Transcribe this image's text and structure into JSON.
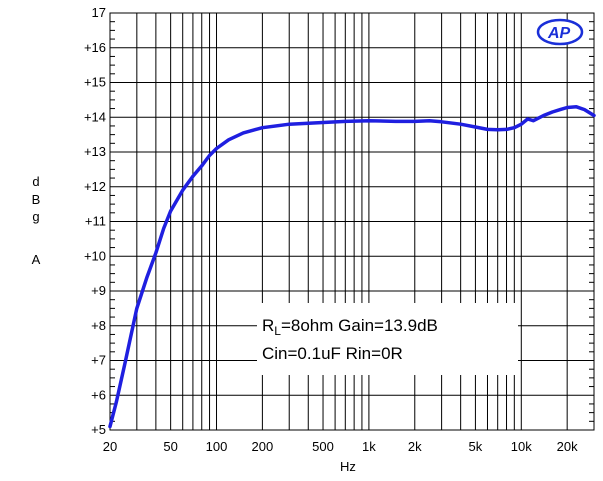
{
  "chart_data": {
    "type": "line",
    "title": "",
    "logo": "AP",
    "xlabel": "Hz",
    "ylabel_lines": [
      "d",
      "B",
      "g",
      "",
      "A"
    ],
    "x_scale": "log",
    "xlim": [
      20,
      30000
    ],
    "ylim": [
      5,
      17
    ],
    "grid": true,
    "x_ticks": [
      {
        "value": 20,
        "label": "20"
      },
      {
        "value": 50,
        "label": "50"
      },
      {
        "value": 100,
        "label": "100"
      },
      {
        "value": 200,
        "label": "200"
      },
      {
        "value": 500,
        "label": "500"
      },
      {
        "value": 1000,
        "label": "1k"
      },
      {
        "value": 2000,
        "label": "2k"
      },
      {
        "value": 5000,
        "label": "5k"
      },
      {
        "value": 10000,
        "label": "10k"
      },
      {
        "value": 20000,
        "label": "20k"
      }
    ],
    "y_ticks": [
      {
        "value": 5,
        "label": "+5"
      },
      {
        "value": 6,
        "label": "+6"
      },
      {
        "value": 7,
        "label": "+7"
      },
      {
        "value": 8,
        "label": "+8"
      },
      {
        "value": 9,
        "label": "+9"
      },
      {
        "value": 10,
        "label": "+10"
      },
      {
        "value": 11,
        "label": "+11"
      },
      {
        "value": 12,
        "label": "+12"
      },
      {
        "value": 13,
        "label": "+13"
      },
      {
        "value": 14,
        "label": "+14"
      },
      {
        "value": 15,
        "label": "+15"
      },
      {
        "value": 16,
        "label": "+16"
      },
      {
        "value": 17,
        "label": "17"
      }
    ],
    "annotation": {
      "line1_prefix": "R",
      "line1_sub": "L",
      "line1_rest": "=8ohm Gain=13.9dB",
      "line2": "Cin=0.1uF Rin=0R"
    },
    "series": [
      {
        "color": "#1f1fe0",
        "x": [
          20,
          22,
          25,
          28,
          30,
          35,
          40,
          45,
          50,
          60,
          70,
          80,
          90,
          100,
          120,
          150,
          200,
          300,
          500,
          700,
          1000,
          1500,
          2000,
          2500,
          3000,
          4000,
          5000,
          6000,
          7000,
          8000,
          9000,
          10000,
          11000,
          12000,
          14000,
          16000,
          18000,
          20000,
          23000,
          26000,
          30000
        ],
        "y": [
          5.1,
          5.8,
          6.9,
          7.9,
          8.5,
          9.4,
          10.1,
          10.8,
          11.3,
          11.9,
          12.3,
          12.6,
          12.9,
          13.1,
          13.35,
          13.55,
          13.7,
          13.8,
          13.85,
          13.88,
          13.9,
          13.88,
          13.88,
          13.9,
          13.87,
          13.8,
          13.72,
          13.65,
          13.64,
          13.65,
          13.7,
          13.8,
          13.95,
          13.9,
          14.05,
          14.15,
          14.22,
          14.28,
          14.3,
          14.22,
          14.05
        ]
      }
    ]
  }
}
